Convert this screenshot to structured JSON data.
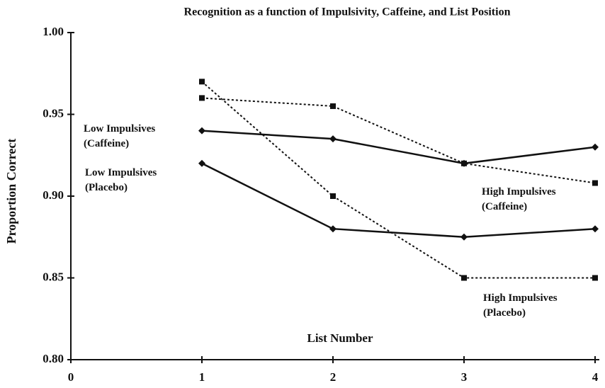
{
  "chart_data": {
    "type": "line",
    "title": "Recognition as a function of Impulsivity, Caffeine, and List Position",
    "xlabel": "List Number",
    "ylabel": "Proportion Correct",
    "x": [
      1,
      2,
      3,
      4
    ],
    "xlim": [
      0,
      4
    ],
    "xticks": [
      0,
      1,
      2,
      3,
      4
    ],
    "ylim": [
      0.8,
      1.0
    ],
    "yticks": [
      {
        "value": 0.8,
        "label": "0.80"
      },
      0.85,
      {
        "value": 0.9,
        "label": "0.90"
      },
      0.95,
      {
        "value": 1.0,
        "label": "1.00"
      }
    ],
    "series": [
      {
        "name": "Low Impulsives (Caffeine)",
        "color": "#111111",
        "style": "solid",
        "marker": "diamond",
        "values": [
          0.94,
          0.935,
          0.92,
          0.93
        ]
      },
      {
        "name": "Low Impulsives (Placebo)",
        "color": "#111111",
        "style": "solid",
        "marker": "diamond",
        "values": [
          0.92,
          0.88,
          0.875,
          0.88
        ]
      },
      {
        "name": "High Impulsives (Caffeine)",
        "color": "#111111",
        "style": "dotted",
        "marker": "square",
        "values": [
          0.96,
          0.955,
          0.92,
          0.908
        ]
      },
      {
        "name": "High Impulsives (Placebo)",
        "color": "#111111",
        "style": "dotted",
        "marker": "square",
        "values": [
          0.97,
          0.9,
          0.85,
          0.85
        ]
      }
    ]
  }
}
